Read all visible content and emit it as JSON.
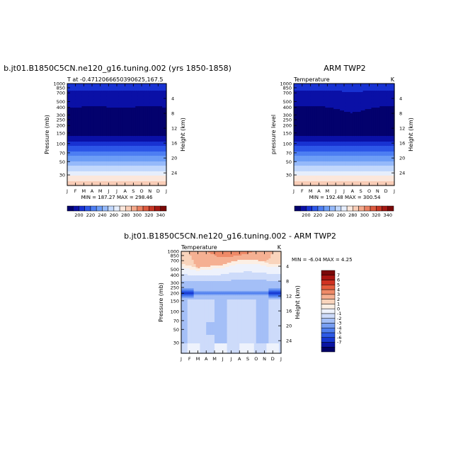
{
  "page": {
    "top_left_title": "b.jt01.B1850C5CN.ne120_g16.tuning.002 (yrs 1850-1858)",
    "top_right_title": "ARM TWP2",
    "bottom_title": "b.jt01.B1850C5CN.ne120_g16.tuning.002 - ARM TWP2"
  },
  "colors": {
    "temperature_scale": [
      "#03016d",
      "#0a10a6",
      "#1832d2",
      "#2d56e8",
      "#4d7ef2",
      "#6d9df6",
      "#95b9fa",
      "#c1d7fc",
      "#e6eefc",
      "#fbe7dc",
      "#f9cdb7",
      "#f4a98b",
      "#ea8061",
      "#dc5a3f",
      "#c63624",
      "#a41812",
      "#7a0807"
    ],
    "difference_scale": [
      "#020166",
      "#0a14a3",
      "#1637d0",
      "#2d5ae6",
      "#4f7eef",
      "#789ff3",
      "#a4bff7",
      "#cddbfa",
      "#eef2fc",
      "#fcefe4",
      "#f9d4bc",
      "#f5b092",
      "#ef8a68",
      "#e45c3d",
      "#cf3222",
      "#a81410",
      "#7a0808"
    ]
  },
  "chart_data": [
    {
      "type": "heatmap",
      "title": "",
      "left_string": "T at -0.4712066650390625,167.5",
      "right_string": "",
      "xlabel": "",
      "ylabel": "Pressure (mb)",
      "ylabel_right": "Height (km)",
      "x_tick_labels": [
        "J",
        "F",
        "M",
        "A",
        "M",
        "J",
        "J",
        "A",
        "S",
        "O",
        "N",
        "D",
        "J"
      ],
      "y_ticks": [
        30,
        50,
        70,
        100,
        150,
        200,
        250,
        300,
        400,
        500,
        700,
        850,
        1000
      ],
      "y_tick_labels": [
        "30",
        "50",
        "70",
        "100",
        "150",
        "200",
        "250",
        "300",
        "400",
        "500",
        "700",
        "850",
        "1000"
      ],
      "y_right_ticks": [
        24,
        20,
        16,
        12,
        8,
        4
      ],
      "y_right_tick_labels": [
        "24",
        "20",
        "16",
        "12",
        "8",
        "4"
      ],
      "ylim": [
        1000,
        20
      ],
      "y_scale": "log",
      "stats": "MIN = 187.27  MAX = 298.46",
      "colorbar": {
        "orientation": "horizontal",
        "labels": [
          "200",
          "220",
          "240",
          "260",
          "280",
          "300",
          "320",
          "340"
        ]
      },
      "tropopause_pressure": [
        100,
        98,
        95,
        92,
        90,
        88,
        88,
        90,
        92,
        95,
        98,
        100,
        100
      ],
      "stratosphere_pressure": [
        58,
        57,
        55,
        55,
        55,
        56,
        57,
        57,
        56,
        55,
        54,
        54,
        58
      ]
    },
    {
      "type": "heatmap",
      "title": "",
      "left_string": "Temperature",
      "right_string": "K",
      "xlabel": "",
      "ylabel": "pressure level",
      "ylabel_right": "Height (km)",
      "x_tick_labels": [
        "J",
        "F",
        "M",
        "A",
        "M",
        "J",
        "J",
        "A",
        "S",
        "O",
        "N",
        "D",
        "J"
      ],
      "y_ticks": [
        30,
        50,
        70,
        100,
        150,
        200,
        250,
        300,
        400,
        500,
        700,
        850,
        1000
      ],
      "y_tick_labels": [
        "30",
        "50",
        "70",
        "100",
        "150",
        "200",
        "250",
        "300",
        "400",
        "500",
        "700",
        "850",
        "1000"
      ],
      "y_right_ticks": [
        24,
        20,
        16,
        12,
        8,
        4
      ],
      "y_right_tick_labels": [
        "24",
        "20",
        "16",
        "12",
        "8",
        "4"
      ],
      "ylim": [
        1000,
        20
      ],
      "y_scale": "log",
      "stats": "MIN = 192.48  MAX = 300.54",
      "colorbar": {
        "orientation": "horizontal",
        "labels": [
          "200",
          "220",
          "240",
          "260",
          "280",
          "300",
          "320",
          "340"
        ]
      },
      "tropopause_pressure": [
        100,
        99,
        97,
        95,
        92,
        88,
        84,
        82,
        85,
        90,
        96,
        100,
        100
      ],
      "stratosphere_pressure": [
        55,
        54,
        54,
        55,
        56,
        60,
        68,
        72,
        67,
        60,
        56,
        54,
        55
      ]
    },
    {
      "type": "heatmap",
      "title": "",
      "left_string": "Temperature",
      "right_string": "K",
      "xlabel": "",
      "ylabel": "Pressure (mb)",
      "ylabel_right": "Height (km)",
      "x_tick_labels": [
        "J",
        "F",
        "M",
        "A",
        "M",
        "J",
        "J",
        "A",
        "S",
        "O",
        "N",
        "D",
        "J"
      ],
      "y_ticks": [
        30,
        50,
        70,
        100,
        150,
        200,
        250,
        300,
        400,
        500,
        700,
        850,
        1000
      ],
      "y_tick_labels": [
        "30",
        "50",
        "70",
        "100",
        "150",
        "200",
        "250",
        "300",
        "400",
        "500",
        "700",
        "850",
        "1000"
      ],
      "y_right_ticks": [
        24,
        20,
        16,
        12,
        8,
        4
      ],
      "y_right_tick_labels": [
        "24",
        "20",
        "16",
        "12",
        "8",
        "4"
      ],
      "ylim": [
        1000,
        20
      ],
      "y_scale": "log",
      "stats": "MIN = -6.04  MAX =  4.25",
      "colorbar": {
        "orientation": "vertical",
        "labels": [
          "7",
          "6",
          "5",
          "4",
          "3",
          "2",
          "1",
          "0",
          "-1",
          "-2",
          "-3",
          "-4",
          "-5",
          "-6",
          "-7"
        ]
      },
      "warm_top_pressure": [
        32,
        35,
        38,
        36,
        35,
        34,
        30,
        28,
        27,
        28,
        30,
        33,
        32
      ],
      "cold_band_center_pressure": [
        100,
        100,
        100,
        100,
        100,
        100,
        100,
        100,
        100,
        100,
        100,
        100,
        100
      ]
    }
  ]
}
